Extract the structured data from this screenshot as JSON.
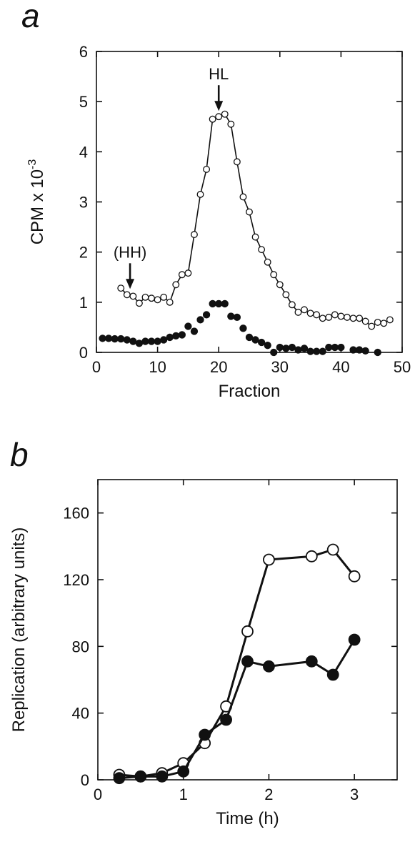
{
  "chart_data": [
    {
      "panel": "a",
      "type": "line",
      "xlabel": "Fraction",
      "ylabel": "CPM x 10",
      "ylabel_superscript": "-3",
      "xlim": [
        0,
        50
      ],
      "ylim": [
        0,
        6
      ],
      "xticks": [
        0,
        10,
        20,
        30,
        40,
        50
      ],
      "yticks": [
        0,
        1,
        2,
        3,
        4,
        5,
        6
      ],
      "annotations": [
        {
          "label": "HL",
          "x": 20,
          "y": 4.7
        },
        {
          "label": "(HH)",
          "x": 5.5,
          "y": 1.15
        }
      ],
      "series": [
        {
          "marker": "open",
          "connected": true,
          "x": [
            4,
            5,
            6,
            7,
            8,
            9,
            10,
            11,
            12,
            13,
            14,
            15,
            16,
            17,
            18,
            19,
            20,
            21,
            22,
            23,
            24,
            25,
            26,
            27,
            28,
            29,
            30,
            31,
            32,
            33,
            34,
            35,
            36,
            37,
            38,
            39,
            40,
            41,
            42,
            43,
            44,
            45,
            46,
            47,
            48
          ],
          "y": [
            1.28,
            1.15,
            1.12,
            0.98,
            1.1,
            1.08,
            1.05,
            1.1,
            1.0,
            1.35,
            1.55,
            1.58,
            2.35,
            3.15,
            3.65,
            4.65,
            4.7,
            4.75,
            4.55,
            3.8,
            3.1,
            2.8,
            2.3,
            2.05,
            1.8,
            1.55,
            1.35,
            1.15,
            0.95,
            0.8,
            0.85,
            0.78,
            0.75,
            0.68,
            0.7,
            0.75,
            0.72,
            0.7,
            0.68,
            0.68,
            0.62,
            0.52,
            0.6,
            0.58,
            0.65
          ]
        },
        {
          "marker": "filled",
          "connected": false,
          "x": [
            1,
            2,
            3,
            4,
            5,
            6,
            7,
            8,
            9,
            10,
            11,
            12,
            13,
            14,
            15,
            16,
            17,
            18,
            19,
            20,
            21,
            22,
            23,
            24,
            25,
            26,
            27,
            28,
            29,
            30,
            31,
            32,
            33,
            34,
            35,
            36,
            37,
            38,
            39,
            40,
            42,
            43,
            44,
            46
          ],
          "y": [
            0.28,
            0.28,
            0.27,
            0.27,
            0.25,
            0.22,
            0.18,
            0.22,
            0.22,
            0.22,
            0.25,
            0.3,
            0.33,
            0.35,
            0.52,
            0.42,
            0.65,
            0.75,
            0.97,
            0.97,
            0.97,
            0.72,
            0.7,
            0.48,
            0.3,
            0.25,
            0.2,
            0.14,
            0.0,
            0.1,
            0.08,
            0.1,
            0.05,
            0.08,
            0.02,
            0.02,
            0.02,
            0.1,
            0.1,
            0.1,
            0.05,
            0.05,
            0.03,
            0.0
          ]
        }
      ]
    },
    {
      "panel": "b",
      "type": "line",
      "xlabel": "Time (h)",
      "ylabel": "Replication (arbitrary units)",
      "xlim": [
        0,
        3.5
      ],
      "ylim": [
        0,
        180
      ],
      "xticks": [
        0,
        1,
        2,
        3
      ],
      "yticks": [
        0,
        40,
        80,
        120,
        160
      ],
      "series": [
        {
          "marker": "open",
          "connected": true,
          "x": [
            0.25,
            0.5,
            0.75,
            1.0,
            1.25,
            1.5,
            1.75,
            2.0,
            2.5,
            2.75,
            3.0
          ],
          "y": [
            3,
            2,
            4,
            10,
            22,
            44,
            89,
            132,
            134,
            138,
            122
          ]
        },
        {
          "marker": "filled",
          "connected": true,
          "x": [
            0.25,
            0.5,
            0.75,
            1.0,
            1.25,
            1.5,
            1.75,
            2.0,
            2.5,
            2.75,
            3.0
          ],
          "y": [
            1,
            2,
            2,
            5,
            27,
            36,
            71,
            68,
            71,
            63,
            84
          ]
        }
      ]
    }
  ]
}
